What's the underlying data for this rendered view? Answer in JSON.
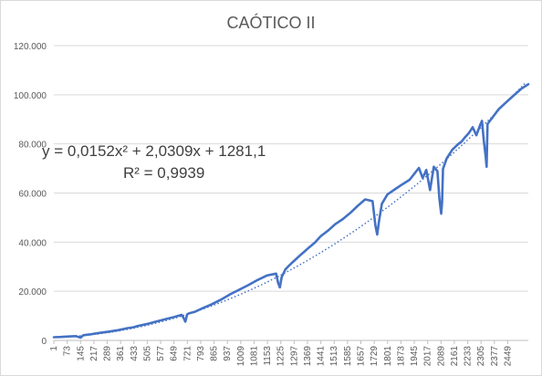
{
  "chart_data": {
    "type": "line",
    "title": "CAÓTICO II",
    "xlabel": "",
    "ylabel": "",
    "xlim": [
      1,
      2560
    ],
    "ylim": [
      0,
      120000
    ],
    "grid": true,
    "legend": "none",
    "y_ticks": [
      "0",
      "20.000",
      "40.000",
      "60.000",
      "80.000",
      "100.000",
      "120.000"
    ],
    "y_tick_values": [
      0,
      20000,
      40000,
      60000,
      80000,
      100000,
      120000
    ],
    "x_ticks": [
      "1",
      "73",
      "145",
      "217",
      "289",
      "361",
      "433",
      "505",
      "577",
      "649",
      "721",
      "793",
      "865",
      "937",
      "1009",
      "1081",
      "1153",
      "1225",
      "1297",
      "1369",
      "1441",
      "1513",
      "1585",
      "1657",
      "1729",
      "1801",
      "1873",
      "1945",
      "2017",
      "2089",
      "2161",
      "2233",
      "2305",
      "2377",
      "2449"
    ],
    "trendline": {
      "type": "polynomial",
      "equation": "y = 0,0152x² + 2,0309x + 1281,1",
      "r_squared": "R² = 0,9939",
      "coefficients": [
        0.0152,
        2.0309,
        1281.1
      ],
      "style": "dotted"
    },
    "series": [
      {
        "color": "#4472c4",
        "x": [
          1,
          40,
          80,
          120,
          145,
          160,
          200,
          250,
          300,
          350,
          400,
          433,
          450,
          500,
          550,
          600,
          650,
          690,
          700,
          710,
          720,
          730,
          760,
          800,
          850,
          900,
          950,
          1000,
          1050,
          1100,
          1150,
          1200,
          1210,
          1220,
          1230,
          1250,
          1270,
          1290,
          1310,
          1330,
          1350,
          1380,
          1410,
          1440,
          1480,
          1520,
          1560,
          1600,
          1640,
          1680,
          1720,
          1735,
          1745,
          1755,
          1770,
          1800,
          1840,
          1880,
          1920,
          1950,
          1970,
          1990,
          2010,
          2030,
          2050,
          2070,
          2080,
          2090,
          2095,
          2100,
          2120,
          2150,
          2180,
          2200,
          2220,
          2240,
          2260,
          2280,
          2300,
          2310,
          2320,
          2330,
          2335,
          2340,
          2360,
          2400,
          2440,
          2480,
          2520,
          2550,
          2560
        ],
        "y": [
          1300,
          1400,
          1600,
          1750,
          1100,
          2100,
          2500,
          3100,
          3600,
          4200,
          5000,
          5400,
          5800,
          6600,
          7600,
          8600,
          9500,
          10400,
          9300,
          7600,
          10600,
          11000,
          11600,
          13000,
          14600,
          16500,
          18700,
          20600,
          22500,
          24600,
          26400,
          27200,
          23500,
          21600,
          25800,
          28900,
          30500,
          31900,
          33300,
          34700,
          36000,
          38000,
          39900,
          42400,
          44700,
          47400,
          49400,
          51900,
          54800,
          57400,
          56700,
          46800,
          43100,
          48600,
          55600,
          59400,
          61500,
          63500,
          65400,
          68300,
          70200,
          66100,
          69400,
          61200,
          70700,
          68900,
          57900,
          51600,
          56200,
          69800,
          74100,
          77600,
          79800,
          80900,
          82800,
          84500,
          86800,
          83500,
          87700,
          89400,
          81400,
          74700,
          70700,
          88100,
          90100,
          94100,
          96900,
          99600,
          102300,
          103800,
          104300
        ]
      }
    ]
  }
}
